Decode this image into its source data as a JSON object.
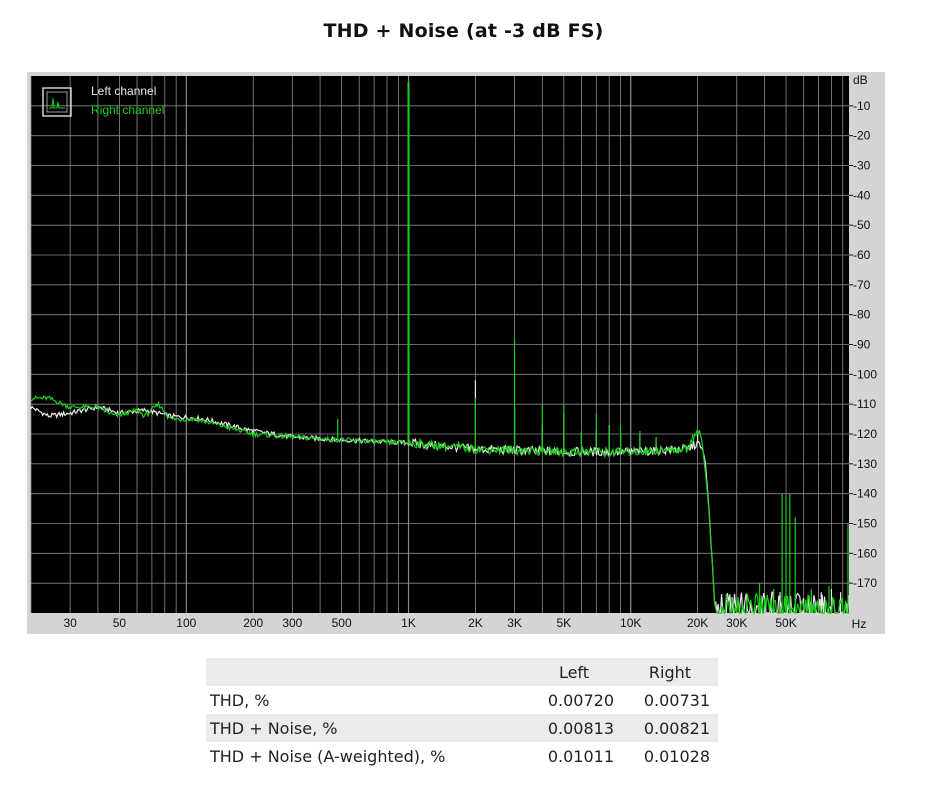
{
  "title": "THD + Noise (at -3 dB FS)",
  "chart_data": {
    "type": "line",
    "xscale": "log",
    "xlim": [
      20,
      96000
    ],
    "ylim": [
      -180,
      0
    ],
    "grid": true,
    "legend_position": "top-left",
    "x_ticks": [
      {
        "v": 30,
        "label": "30"
      },
      {
        "v": 50,
        "label": "50"
      },
      {
        "v": 100,
        "label": "100"
      },
      {
        "v": 200,
        "label": "200"
      },
      {
        "v": 300,
        "label": "300"
      },
      {
        "v": 500,
        "label": "500"
      },
      {
        "v": 1000,
        "label": "1K"
      },
      {
        "v": 2000,
        "label": "2K"
      },
      {
        "v": 3000,
        "label": "3K"
      },
      {
        "v": 5000,
        "label": "5K"
      },
      {
        "v": 10000,
        "label": "10K"
      },
      {
        "v": 20000,
        "label": "20K"
      },
      {
        "v": 30000,
        "label": "30K"
      },
      {
        "v": 50000,
        "label": "50K"
      }
    ],
    "x_unit": "Hz",
    "y_unit": "dB",
    "y_ticks": [
      -10,
      -20,
      -30,
      -40,
      -50,
      -60,
      -70,
      -80,
      -90,
      -100,
      -110,
      -120,
      -130,
      -140,
      -150,
      -160,
      -170
    ],
    "colors": {
      "background": "#000000",
      "grid": "#8a8a8a",
      "left": "#e8e8e8",
      "right": "#18d018"
    },
    "series": [
      {
        "name": "Left channel",
        "color": "#e8e8e8",
        "floor": [
          [
            20,
            -111
          ],
          [
            24,
            -114
          ],
          [
            30,
            -113
          ],
          [
            40,
            -111
          ],
          [
            50,
            -113
          ],
          [
            65,
            -112
          ],
          [
            85,
            -114
          ],
          [
            120,
            -115
          ],
          [
            200,
            -119
          ],
          [
            300,
            -121
          ],
          [
            500,
            -122
          ],
          [
            1000,
            -123
          ],
          [
            2000,
            -125
          ],
          [
            5000,
            -126
          ],
          [
            10000,
            -126
          ],
          [
            18000,
            -125
          ],
          [
            20000,
            -123
          ],
          [
            21500,
            -127
          ],
          [
            22500,
            -145
          ],
          [
            24000,
            -180
          ],
          [
            96000,
            -180
          ]
        ],
        "peaks": [
          [
            1000,
            -2
          ],
          [
            2000,
            -102
          ],
          [
            3000,
            -111
          ],
          [
            4000,
            -117
          ],
          [
            5000,
            -113
          ],
          [
            6000,
            -120
          ],
          [
            7000,
            -119
          ],
          [
            8000,
            -117
          ],
          [
            9000,
            -120
          ],
          [
            11000,
            -120
          ],
          [
            13000,
            -121
          ],
          [
            20000,
            -120
          ],
          [
            40000,
            -175
          ],
          [
            43000,
            -174
          ],
          [
            47000,
            -173
          ],
          [
            60000,
            -175
          ],
          [
            72000,
            -173
          ],
          [
            80000,
            -172
          ],
          [
            88000,
            -173
          ]
        ]
      },
      {
        "name": "Right channel",
        "color": "#18d018",
        "floor": [
          [
            20,
            -108
          ],
          [
            24,
            -108
          ],
          [
            30,
            -111
          ],
          [
            40,
            -111
          ],
          [
            48,
            -114
          ],
          [
            60,
            -112
          ],
          [
            65,
            -114
          ],
          [
            75,
            -110
          ],
          [
            85,
            -115
          ],
          [
            110,
            -115
          ],
          [
            200,
            -120
          ],
          [
            300,
            -121
          ],
          [
            500,
            -122
          ],
          [
            1000,
            -123
          ],
          [
            2000,
            -125
          ],
          [
            5000,
            -126
          ],
          [
            10000,
            -126
          ],
          [
            18000,
            -125
          ],
          [
            19500,
            -120
          ],
          [
            20000,
            -118
          ],
          [
            21000,
            -123
          ],
          [
            22500,
            -145
          ],
          [
            24000,
            -180
          ],
          [
            96000,
            -180
          ]
        ],
        "peaks": [
          [
            1000,
            -2
          ],
          [
            480,
            -115
          ],
          [
            2000,
            -108
          ],
          [
            3000,
            -88
          ],
          [
            4000,
            -110
          ],
          [
            5000,
            -110
          ],
          [
            6000,
            -119
          ],
          [
            7000,
            -113
          ],
          [
            8000,
            -117
          ],
          [
            9000,
            -117
          ],
          [
            11000,
            -119
          ],
          [
            13000,
            -121
          ],
          [
            19000,
            -120
          ],
          [
            48000,
            -140
          ],
          [
            50000,
            -141
          ],
          [
            52000,
            -140
          ],
          [
            55000,
            -148
          ],
          [
            38000,
            -170
          ],
          [
            44000,
            -172
          ],
          [
            65000,
            -172
          ],
          [
            78000,
            -171
          ],
          [
            95000,
            -150
          ]
        ]
      }
    ]
  },
  "table": {
    "headers": [
      "",
      "Left",
      "Right"
    ],
    "rows": [
      [
        "THD, %",
        "0.00720",
        "0.00731"
      ],
      [
        "THD + Noise, %",
        "0.00813",
        "0.00821"
      ],
      [
        "THD + Noise (A-weighted), %",
        "0.01011",
        "0.01028"
      ]
    ]
  }
}
